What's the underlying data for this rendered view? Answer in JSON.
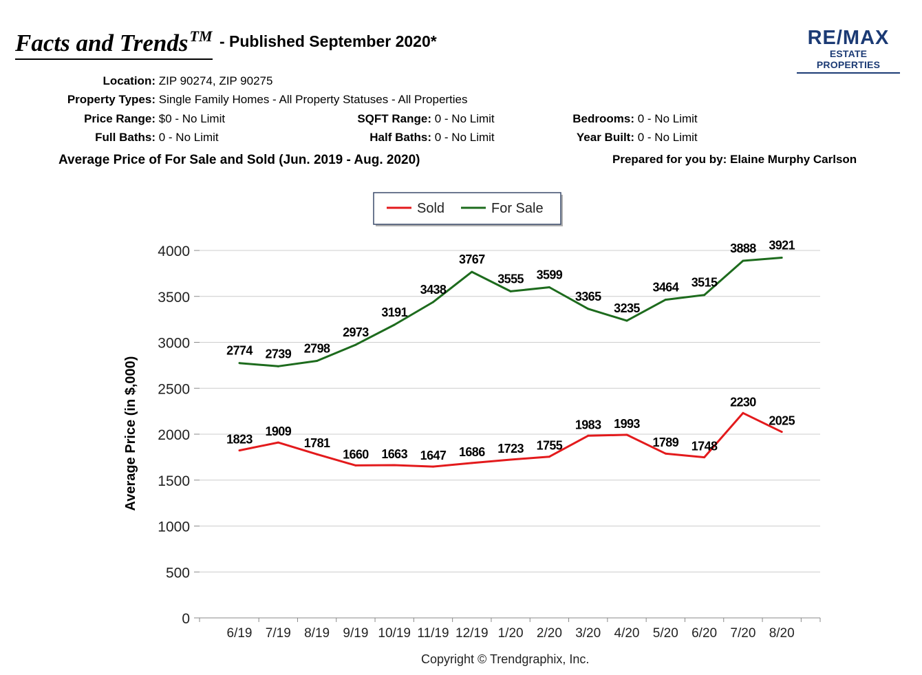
{
  "header": {
    "title": "Facts and Trends",
    "trademark": "TM",
    "subtitle": "- Published September 2020*",
    "logo_main": "RE/MAX",
    "logo_sub": "ESTATE PROPERTIES"
  },
  "filters": {
    "location_label": "Location:",
    "location_value": "ZIP 90274, ZIP 90275",
    "types_label": "Property Types:",
    "types_value": "Single Family Homes - All Property Statuses - All Properties",
    "price_label": "Price Range:",
    "price_value": "$0 - No Limit",
    "sqft_label": "SQFT Range:",
    "sqft_value": "0 - No Limit",
    "bedrooms_label": "Bedrooms:",
    "bedrooms_value": "0 - No Limit",
    "fullbaths_label": "Full Baths:",
    "fullbaths_value": "0 - No Limit",
    "halfbaths_label": "Half Baths:",
    "halfbaths_value": "0 - No Limit",
    "yearbuilt_label": "Year Built:",
    "yearbuilt_value": "0 - No Limit"
  },
  "chart_title": "Average Price of For Sale and Sold (Jun. 2019 - Aug. 2020)",
  "prepared_by": "Prepared for you by: Elaine Murphy Carlson",
  "copyright": "Copyright © Trendgraphix, Inc.",
  "colors": {
    "sold": "#e31a1c",
    "for_sale": "#1d6b1d",
    "grid": "#cccccc",
    "logo": "#1b3a74"
  },
  "chart_data": {
    "type": "line",
    "categories": [
      "6/19",
      "7/19",
      "8/19",
      "9/19",
      "10/19",
      "11/19",
      "12/19",
      "1/20",
      "2/20",
      "3/20",
      "4/20",
      "5/20",
      "6/20",
      "7/20",
      "8/20"
    ],
    "series": [
      {
        "name": "Sold",
        "values": [
          1823,
          1909,
          1781,
          1660,
          1663,
          1647,
          1686,
          1723,
          1755,
          1983,
          1993,
          1789,
          1748,
          2230,
          2025
        ]
      },
      {
        "name": "For Sale",
        "values": [
          2774,
          2739,
          2798,
          2973,
          3191,
          3438,
          3767,
          3555,
          3599,
          3365,
          3235,
          3464,
          3515,
          3888,
          3921
        ]
      }
    ],
    "ylabel": "Average Price (in $,000)",
    "ylim": [
      0,
      4000
    ],
    "yticks": [
      0,
      500,
      1000,
      1500,
      2000,
      2500,
      3000,
      3500,
      4000
    ],
    "grid": true,
    "legend": "top-center"
  }
}
